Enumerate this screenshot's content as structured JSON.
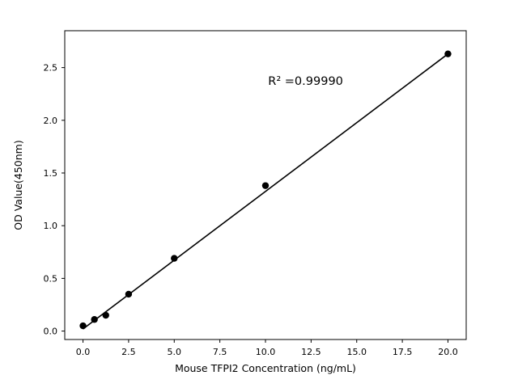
{
  "figure": {
    "background": "#ffffff",
    "line_color": "#000000",
    "marker_color": "#000000"
  },
  "chart_data": {
    "type": "scatter",
    "title": "",
    "xlabel": "Mouse TFPI2 Concentration (ng/mL)",
    "ylabel": "OD Value(450nm)",
    "annotation": "R² =0.99990",
    "x": [
      0,
      0.625,
      1.25,
      2.5,
      5,
      10,
      20
    ],
    "y": [
      0.05,
      0.11,
      0.15,
      0.35,
      0.69,
      1.38,
      2.63
    ],
    "fit_line": {
      "x": [
        0,
        20
      ],
      "y": [
        0.02,
        2.63
      ]
    },
    "xlim": [
      -1,
      21
    ],
    "ylim": [
      -0.08,
      2.85
    ],
    "xticks": [
      0,
      2.5,
      5,
      7.5,
      10,
      12.5,
      15,
      17.5,
      20
    ],
    "xtick_labels": [
      "0.0",
      "2.5",
      "5.0",
      "7.5",
      "10.0",
      "12.5",
      "15.0",
      "17.5",
      "20.0"
    ],
    "yticks": [
      0,
      0.5,
      1,
      1.5,
      2,
      2.5
    ],
    "ytick_labels": [
      "0.0",
      "0.5",
      "1.0",
      "1.5",
      "2.0",
      "2.5"
    ],
    "grid": false,
    "legend": "none"
  }
}
